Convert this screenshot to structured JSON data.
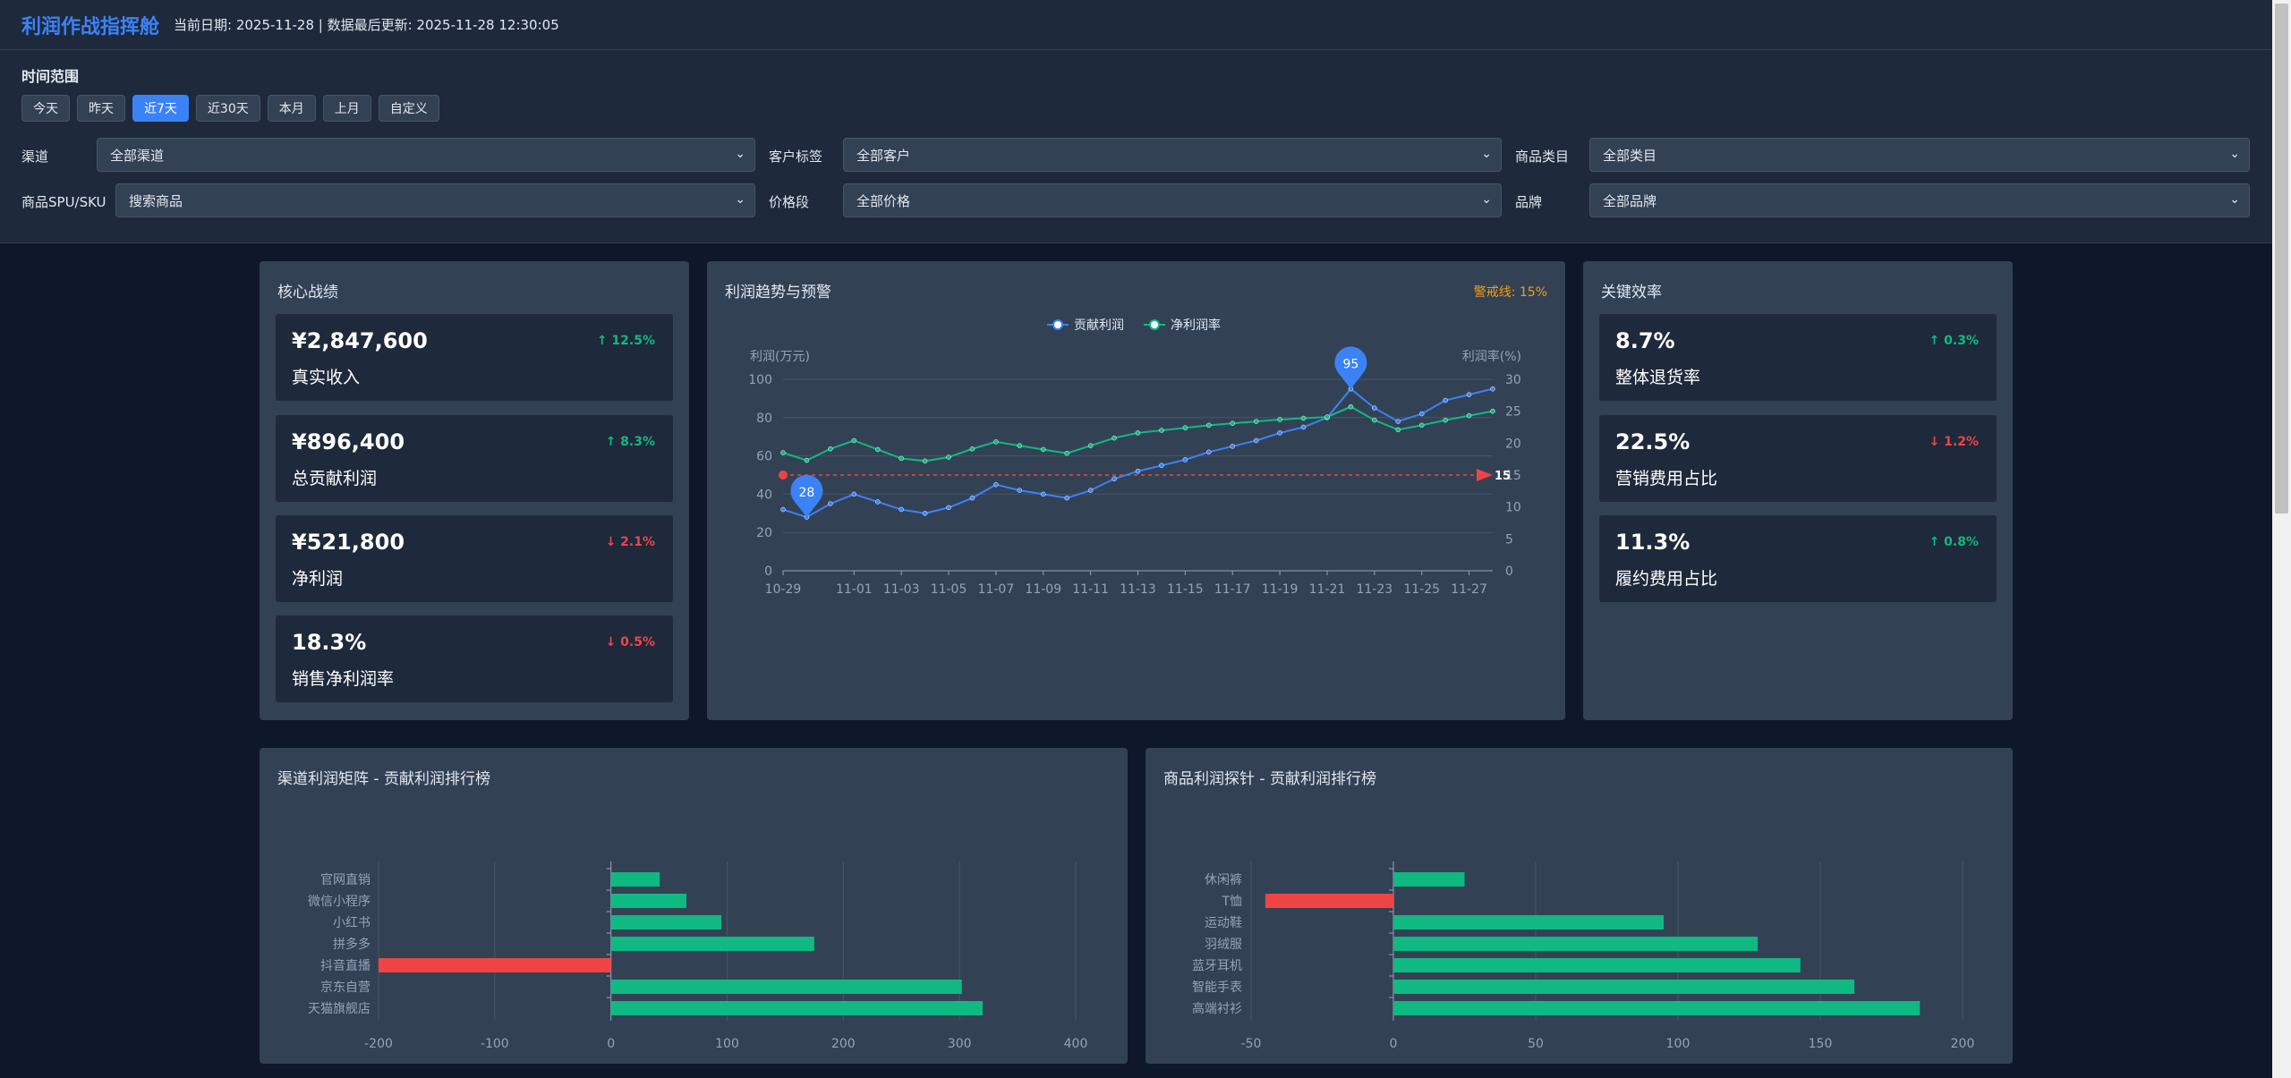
{
  "header": {
    "title": "利润作战指挥舱",
    "date_text": "当前日期: 2025-11-28 | 数据最后更新: 2025-11-28 12:30:05"
  },
  "filters": {
    "time_range_label": "时间范围",
    "time_buttons": [
      "今天",
      "昨天",
      "近7天",
      "近30天",
      "本月",
      "上月",
      "自定义"
    ],
    "active_time_button": "近7天",
    "channel": {
      "label": "渠道",
      "value": "全部渠道"
    },
    "customer_tag": {
      "label": "客户标签",
      "value": "全部客户"
    },
    "category": {
      "label": "商品类目",
      "value": "全部类目"
    },
    "sku": {
      "label": "商品SPU/SKU",
      "value": "搜索商品"
    },
    "price_range": {
      "label": "价格段",
      "value": "全部价格"
    },
    "brand": {
      "label": "品牌",
      "value": "全部品牌"
    }
  },
  "core": {
    "title": "核心战绩",
    "kpis": [
      {
        "value": "¥2,847,600",
        "label": "真实收入",
        "delta": "↑ 12.5%",
        "direction": "up"
      },
      {
        "value": "¥896,400",
        "label": "总贡献利润",
        "delta": "↑ 8.3%",
        "direction": "up"
      },
      {
        "value": "¥521,800",
        "label": "净利润",
        "delta": "↓ 2.1%",
        "direction": "down"
      },
      {
        "value": "18.3%",
        "label": "销售净利润率",
        "delta": "↓ 0.5%",
        "direction": "down"
      }
    ]
  },
  "trend": {
    "title": "利润趋势与预警",
    "warning_line_label": "警戒线: 15%"
  },
  "efficiency": {
    "title": "关键效率",
    "kpis": [
      {
        "value": "8.7%",
        "label": "整体退货率",
        "delta": "↑ 0.3%",
        "direction": "up"
      },
      {
        "value": "22.5%",
        "label": "营销费用占比",
        "delta": "↓ 1.2%",
        "direction": "down"
      },
      {
        "value": "11.3%",
        "label": "履约费用占比",
        "delta": "↑ 0.8%",
        "direction": "up"
      }
    ]
  },
  "channel_panel": {
    "title": "渠道利润矩阵 - 贡献利润排行榜"
  },
  "product_panel": {
    "title": "商品利润探针 - 贡献利润排行榜"
  },
  "colors": {
    "accent": "#3b82f6",
    "positive": "#10b981",
    "negative": "#ef4444",
    "warning": "#f59e0b"
  },
  "chart_data": [
    {
      "type": "line",
      "title": "利润趋势与预警",
      "legend": [
        "贡献利润",
        "净利润率"
      ],
      "ylabel": "利润(万元)",
      "y2label": "利润率(%)",
      "ylim": [
        0,
        100
      ],
      "y2lim": [
        0,
        30
      ],
      "y_ticks": [
        0,
        20,
        40,
        60,
        80,
        100
      ],
      "y2_ticks": [
        0,
        5,
        10,
        15,
        20,
        25,
        30
      ],
      "x": [
        "10-29",
        "10-30",
        "10-31",
        "11-01",
        "11-02",
        "11-03",
        "11-04",
        "11-05",
        "11-06",
        "11-07",
        "11-08",
        "11-09",
        "11-10",
        "11-11",
        "11-12",
        "11-13",
        "11-14",
        "11-15",
        "11-16",
        "11-17",
        "11-18",
        "11-19",
        "11-20",
        "11-21",
        "11-22",
        "11-23",
        "11-24",
        "11-25",
        "11-26",
        "11-27",
        "11-28"
      ],
      "x_tick_labels": [
        "10-29",
        "11-01",
        "11-03",
        "11-05",
        "11-07",
        "11-09",
        "11-11",
        "11-13",
        "11-15",
        "11-17",
        "11-19",
        "11-21",
        "11-23",
        "11-25",
        "11-27"
      ],
      "series": [
        {
          "name": "贡献利润",
          "axis": "left",
          "color": "#3b82f6",
          "values": [
            32,
            28,
            35,
            40,
            36,
            32,
            30,
            33,
            38,
            45,
            42,
            40,
            38,
            42,
            48,
            52,
            55,
            58,
            62,
            65,
            68,
            72,
            75,
            80,
            95,
            85,
            78,
            82,
            89,
            92,
            95
          ]
        },
        {
          "name": "净利润率",
          "axis": "right",
          "color": "#10b981",
          "values": [
            18.5,
            17.3,
            19.1,
            20.4,
            19.0,
            17.6,
            17.2,
            17.8,
            19.1,
            20.2,
            19.6,
            19.0,
            18.4,
            19.6,
            20.8,
            21.6,
            22.0,
            22.4,
            22.8,
            23.1,
            23.4,
            23.7,
            23.9,
            24.1,
            25.7,
            23.6,
            22.1,
            22.8,
            23.6,
            24.3,
            25.0
          ]
        }
      ],
      "markers": [
        {
          "series": "贡献利润",
          "x": "10-30",
          "label": "28"
        },
        {
          "series": "贡献利润",
          "x": "11-22",
          "label": "95"
        }
      ],
      "warning_line": {
        "value": 15,
        "axis": "right",
        "label": "15"
      }
    },
    {
      "type": "bar",
      "orientation": "horizontal",
      "title": "渠道利润矩阵 - 贡献利润排行榜",
      "categories": [
        "官网直销",
        "微信小程序",
        "小红书",
        "拼多多",
        "抖音直播",
        "京东自营",
        "天猫旗舰店"
      ],
      "values": [
        42,
        65,
        95,
        175,
        -200,
        302,
        320
      ],
      "xlim": [
        -200,
        400
      ],
      "x_ticks": [
        -200,
        -100,
        0,
        100,
        200,
        300,
        400
      ]
    },
    {
      "type": "bar",
      "orientation": "horizontal",
      "title": "商品利润探针 - 贡献利润排行榜",
      "categories": [
        "休闲裤",
        "T恤",
        "运动鞋",
        "羽绒服",
        "蓝牙耳机",
        "智能手表",
        "高端衬衫"
      ],
      "values": [
        25,
        -45,
        95,
        128,
        143,
        162,
        185
      ],
      "xlim": [
        -50,
        200
      ],
      "x_ticks": [
        -50,
        0,
        50,
        100,
        150,
        200
      ]
    }
  ]
}
